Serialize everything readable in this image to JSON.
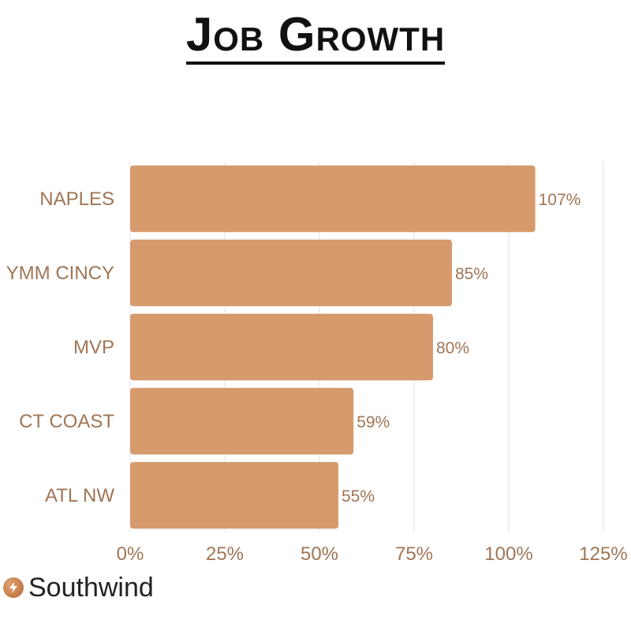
{
  "chart_data": {
    "type": "bar",
    "orientation": "horizontal",
    "title": "Job Growth",
    "categories": [
      "NAPLES",
      "YMM CINCY",
      "MVP",
      "CT COAST",
      "ATL NW"
    ],
    "values": [
      107,
      85,
      80,
      59,
      55
    ],
    "value_labels": [
      "107%",
      "85%",
      "80%",
      "59%",
      "55%"
    ],
    "xlim": [
      0,
      125
    ],
    "x_ticks": [
      0,
      25,
      50,
      75,
      100,
      125
    ],
    "x_tick_labels": [
      "0%",
      "25%",
      "50%",
      "75%",
      "100%",
      "125%"
    ],
    "xlabel": "",
    "ylabel": "",
    "grid": true,
    "legend": "none",
    "bar_color": "#d69a6c"
  },
  "brand": {
    "name": "Southwind",
    "icon": "lightning-icon",
    "accent": "#c7844f"
  }
}
